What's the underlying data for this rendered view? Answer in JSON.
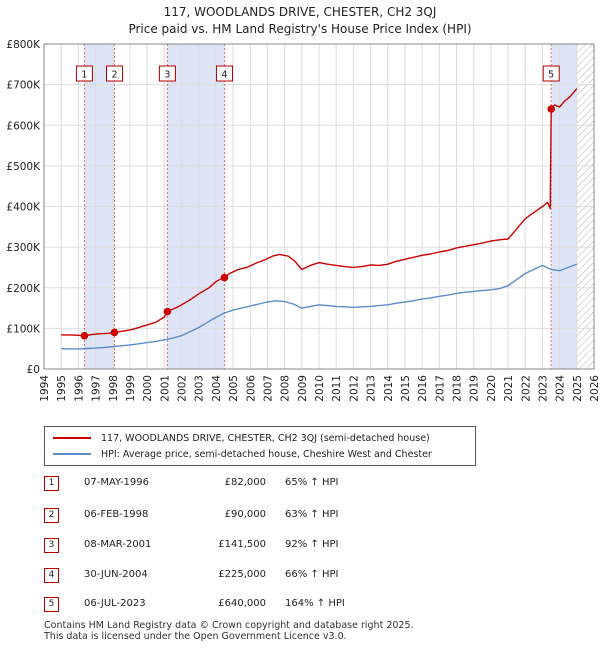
{
  "title_line1": "117, WOODLANDS DRIVE, CHESTER, CH2 3QJ",
  "title_line2": "Price paid vs. HM Land Registry's House Price Index (HPI)",
  "colors": {
    "property": "#cc0000",
    "hpi": "#5b8ec9",
    "band": "#dde4f5",
    "vline": "#e07070",
    "grid": "#dddddd"
  },
  "legend": {
    "property_label": "117, WOODLANDS DRIVE, CHESTER, CH2 3QJ (semi-detached house)",
    "hpi_label": "HPI: Average price, semi-detached house, Cheshire West and Chester"
  },
  "chart_data": {
    "type": "line",
    "xlim": [
      1994,
      2026
    ],
    "ylim": [
      0,
      800000
    ],
    "y_ticks": [
      0,
      100000,
      200000,
      300000,
      400000,
      500000,
      600000,
      700000,
      800000
    ],
    "y_tick_labels": [
      "£0",
      "£100K",
      "£200K",
      "£300K",
      "£400K",
      "£500K",
      "£600K",
      "£700K",
      "£800K"
    ],
    "x_ticks": [
      1994,
      1995,
      1996,
      1997,
      1998,
      1999,
      2000,
      2001,
      2002,
      2003,
      2004,
      2005,
      2006,
      2007,
      2008,
      2009,
      2010,
      2011,
      2012,
      2013,
      2014,
      2015,
      2016,
      2017,
      2018,
      2019,
      2020,
      2021,
      2022,
      2023,
      2024,
      2025,
      2026
    ],
    "shaded_periods": [
      [
        1996.35,
        1998.1
      ],
      [
        2001.18,
        2004.5
      ],
      [
        2023.51,
        2025.0
      ]
    ],
    "hatched_after": 2025.0,
    "series": [
      {
        "name": "117, WOODLANDS DRIVE, CHESTER, CH2 3QJ (semi-detached house)",
        "x": [
          1995.0,
          1995.5,
          1996.0,
          1996.35,
          1996.8,
          1997.3,
          1997.8,
          1998.1,
          1998.6,
          1999.2,
          1999.8,
          2000.5,
          2001.0,
          2001.18,
          2001.8,
          2002.5,
          2003.0,
          2003.6,
          2004.0,
          2004.3,
          2004.5,
          2004.8,
          2005.3,
          2005.8,
          2006.3,
          2006.8,
          2007.3,
          2007.7,
          2008.2,
          2008.6,
          2009.0,
          2009.5,
          2010.0,
          2010.5,
          2011.0,
          2011.5,
          2012.0,
          2012.5,
          2013.0,
          2013.5,
          2014.0,
          2014.5,
          2015.0,
          2015.5,
          2016.0,
          2016.5,
          2017.0,
          2017.5,
          2018.0,
          2018.5,
          2019.0,
          2019.5,
          2020.0,
          2020.5,
          2021.0,
          2021.5,
          2022.0,
          2022.5,
          2023.0,
          2023.3,
          2023.45,
          2023.51,
          2023.7,
          2024.0,
          2024.3,
          2024.6,
          2025.0
        ],
        "values": [
          84000,
          84000,
          83000,
          82000,
          85000,
          87000,
          88000,
          90000,
          93000,
          98000,
          106000,
          115000,
          128000,
          141500,
          153000,
          170000,
          185000,
          200000,
          215000,
          222000,
          225000,
          235000,
          245000,
          250000,
          260000,
          268000,
          278000,
          282000,
          278000,
          265000,
          245000,
          255000,
          262000,
          258000,
          255000,
          252000,
          250000,
          252000,
          256000,
          255000,
          258000,
          265000,
          270000,
          275000,
          280000,
          283000,
          288000,
          292000,
          298000,
          302000,
          306000,
          310000,
          315000,
          318000,
          320000,
          345000,
          370000,
          385000,
          400000,
          410000,
          395000,
          640000,
          650000,
          645000,
          660000,
          670000,
          690000
        ]
      },
      {
        "name": "HPI: Average price, semi-detached house, Cheshire West and Chester",
        "x": [
          1995.0,
          1995.5,
          1996.0,
          1996.5,
          1997.0,
          1997.5,
          1998.0,
          1998.5,
          1999.0,
          1999.5,
          2000.0,
          2000.5,
          2001.0,
          2001.5,
          2002.0,
          2002.5,
          2003.0,
          2003.5,
          2004.0,
          2004.5,
          2005.0,
          2005.5,
          2006.0,
          2006.5,
          2007.0,
          2007.5,
          2008.0,
          2008.5,
          2009.0,
          2009.5,
          2010.0,
          2010.5,
          2011.0,
          2011.5,
          2012.0,
          2012.5,
          2013.0,
          2013.5,
          2014.0,
          2014.5,
          2015.0,
          2015.5,
          2016.0,
          2016.5,
          2017.0,
          2017.5,
          2018.0,
          2018.5,
          2019.0,
          2019.5,
          2020.0,
          2020.5,
          2021.0,
          2021.5,
          2022.0,
          2022.5,
          2023.0,
          2023.5,
          2024.0,
          2024.5,
          2025.0
        ],
        "values": [
          50000,
          49500,
          49500,
          50500,
          51500,
          53000,
          55000,
          57000,
          59000,
          62000,
          65000,
          68000,
          72000,
          76000,
          82000,
          92000,
          102000,
          115000,
          127000,
          138000,
          145000,
          150000,
          155000,
          160000,
          165000,
          168000,
          166000,
          160000,
          150000,
          154000,
          158000,
          156000,
          154000,
          153000,
          152000,
          153000,
          154000,
          156000,
          158000,
          162000,
          165000,
          168000,
          172000,
          175000,
          179000,
          182000,
          186000,
          189000,
          191000,
          193000,
          195000,
          198000,
          205000,
          220000,
          235000,
          245000,
          255000,
          245000,
          242000,
          250000,
          258000
        ]
      }
    ],
    "sale_markers": [
      {
        "label": "1",
        "x": 1996.35,
        "y": 82000
      },
      {
        "label": "2",
        "x": 1998.1,
        "y": 90000
      },
      {
        "label": "3",
        "x": 2001.18,
        "y": 141500
      },
      {
        "label": "4",
        "x": 2004.5,
        "y": 225000
      },
      {
        "label": "5",
        "x": 2023.51,
        "y": 640000
      }
    ]
  },
  "sales": [
    {
      "num": "1",
      "date": "07-MAY-1996",
      "price": "£82,000",
      "hpi": "65% ↑ HPI"
    },
    {
      "num": "2",
      "date": "06-FEB-1998",
      "price": "£90,000",
      "hpi": "63% ↑ HPI"
    },
    {
      "num": "3",
      "date": "08-MAR-2001",
      "price": "£141,500",
      "hpi": "92% ↑ HPI"
    },
    {
      "num": "4",
      "date": "30-JUN-2004",
      "price": "£225,000",
      "hpi": "66% ↑ HPI"
    },
    {
      "num": "5",
      "date": "06-JUL-2023",
      "price": "£640,000",
      "hpi": "164% ↑ HPI"
    }
  ],
  "footer_line1": "Contains HM Land Registry data © Crown copyright and database right 2025.",
  "footer_line2": "This data is licensed under the Open Government Licence v3.0."
}
